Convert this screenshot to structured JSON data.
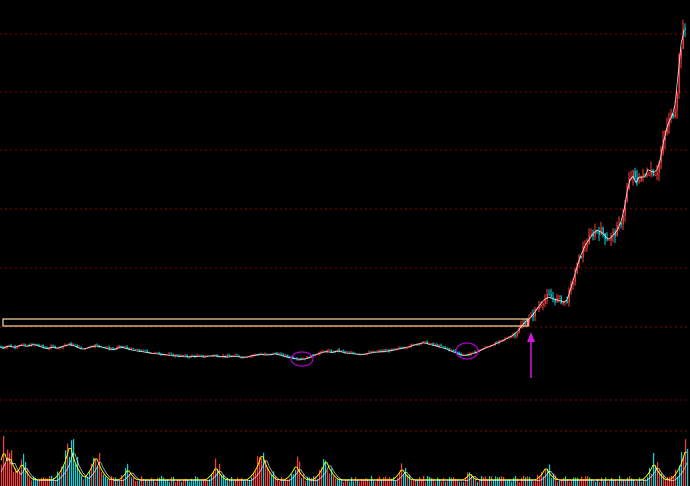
{
  "colors": {
    "background": "#000000",
    "grid": "#8b0000",
    "candle_up": "#ff3b3b",
    "candle_down": "#00d8e0",
    "ma_line": "#ffffff",
    "volume_ma1": "#ffff00",
    "volume_ma2": "#ffffff",
    "base_box": "#ffd8a0",
    "annotation": "#d21ad2",
    "ellipse": "#b000d0"
  },
  "annotations": {
    "base_box": "consolidation-base",
    "ellipses": [
      "first-low",
      "second-low"
    ],
    "arrow": "breakout-arrow-up"
  },
  "chart_data": {
    "type": "candlestick",
    "title": "",
    "xlabel": "",
    "ylabel": "",
    "grid": "horizontal-dotted",
    "legend": "none",
    "price_path": [
      [
        0,
        0.09
      ],
      [
        3,
        0.07
      ],
      [
        8,
        0.11
      ],
      [
        14,
        0.08
      ],
      [
        20,
        0.12
      ],
      [
        27,
        0.1
      ],
      [
        34,
        0.13
      ],
      [
        40,
        0.1
      ],
      [
        47,
        0.06
      ],
      [
        52,
        0.09
      ],
      [
        58,
        0.07
      ],
      [
        64,
        0.11
      ],
      [
        70,
        0.13
      ],
      [
        76,
        0.1
      ],
      [
        82,
        0.05
      ],
      [
        88,
        0.08
      ],
      [
        95,
        0.11
      ],
      [
        102,
        0.09
      ],
      [
        108,
        0.06
      ],
      [
        115,
        0.05
      ],
      [
        120,
        0.09
      ],
      [
        126,
        0.07
      ],
      [
        132,
        0.04
      ],
      [
        140,
        0.02
      ],
      [
        148,
        0.0
      ],
      [
        156,
        -0.02
      ],
      [
        164,
        -0.03
      ],
      [
        172,
        -0.05
      ],
      [
        180,
        -0.06
      ],
      [
        188,
        -0.07
      ],
      [
        196,
        -0.06
      ],
      [
        204,
        -0.07
      ],
      [
        212,
        -0.05
      ],
      [
        220,
        -0.06
      ],
      [
        228,
        -0.07
      ],
      [
        236,
        -0.06
      ],
      [
        244,
        -0.08
      ],
      [
        252,
        -0.05
      ],
      [
        260,
        -0.03
      ],
      [
        268,
        -0.04
      ],
      [
        276,
        -0.02
      ],
      [
        284,
        -0.06
      ],
      [
        290,
        -0.08
      ],
      [
        296,
        -0.1
      ],
      [
        302,
        -0.11
      ],
      [
        308,
        -0.09
      ],
      [
        314,
        -0.04
      ],
      [
        320,
        -0.01
      ],
      [
        326,
        0.02
      ],
      [
        332,
        0.0
      ],
      [
        338,
        0.03
      ],
      [
        346,
        -0.01
      ],
      [
        354,
        -0.02
      ],
      [
        362,
        -0.03
      ],
      [
        370,
        -0.01
      ],
      [
        378,
        0.01
      ],
      [
        386,
        0.02
      ],
      [
        394,
        0.04
      ],
      [
        402,
        0.07
      ],
      [
        410,
        0.1
      ],
      [
        418,
        0.14
      ],
      [
        424,
        0.16
      ],
      [
        430,
        0.13
      ],
      [
        438,
        0.1
      ],
      [
        446,
        0.06
      ],
      [
        452,
        0.02
      ],
      [
        458,
        -0.02
      ],
      [
        464,
        -0.05
      ],
      [
        470,
        -0.03
      ],
      [
        476,
        0.0
      ],
      [
        482,
        0.05
      ],
      [
        488,
        0.09
      ],
      [
        494,
        0.13
      ],
      [
        500,
        0.17
      ],
      [
        506,
        0.22
      ],
      [
        512,
        0.27
      ],
      [
        518,
        0.35
      ],
      [
        524,
        0.48
      ],
      [
        530,
        0.55
      ],
      [
        536,
        0.68
      ],
      [
        542,
        0.82
      ],
      [
        548,
        0.9
      ],
      [
        554,
        0.86
      ],
      [
        560,
        0.84
      ],
      [
        566,
        0.8
      ],
      [
        572,
        1.1
      ],
      [
        578,
        1.45
      ],
      [
        584,
        1.7
      ],
      [
        590,
        1.85
      ],
      [
        596,
        1.98
      ],
      [
        602,
        1.94
      ],
      [
        608,
        1.82
      ],
      [
        614,
        1.9
      ],
      [
        620,
        2.05
      ],
      [
        624,
        2.3
      ],
      [
        628,
        2.7
      ],
      [
        632,
        2.88
      ],
      [
        636,
        2.74
      ],
      [
        640,
        2.86
      ],
      [
        644,
        2.8
      ],
      [
        648,
        2.95
      ],
      [
        652,
        2.92
      ],
      [
        656,
        2.9
      ],
      [
        660,
        3.1
      ],
      [
        664,
        3.45
      ],
      [
        668,
        3.7
      ],
      [
        672,
        3.82
      ],
      [
        676,
        4.05
      ],
      [
        680,
        4.9
      ],
      [
        684,
        5.2
      ]
    ],
    "volume_peaks": [
      [
        4,
        0.85
      ],
      [
        10,
        0.7
      ],
      [
        22,
        0.55
      ],
      [
        70,
        1.0
      ],
      [
        96,
        0.72
      ],
      [
        128,
        0.4
      ],
      [
        216,
        0.45
      ],
      [
        262,
        0.78
      ],
      [
        296,
        0.5
      ],
      [
        326,
        0.62
      ],
      [
        402,
        0.42
      ],
      [
        470,
        0.3
      ],
      [
        546,
        0.45
      ],
      [
        654,
        0.55
      ],
      [
        686,
        0.9
      ]
    ]
  }
}
